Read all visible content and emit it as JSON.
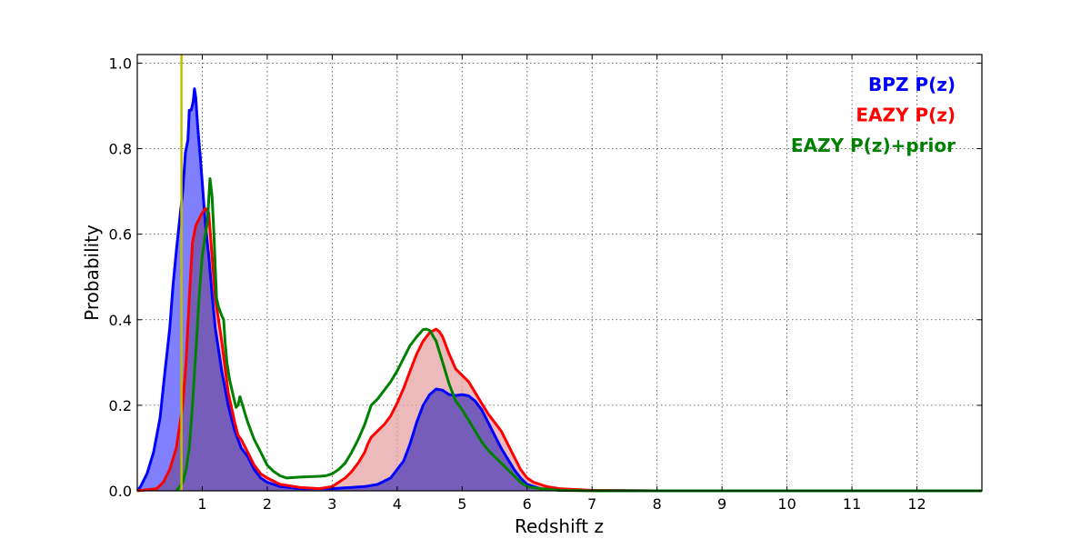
{
  "chart_data": {
    "type": "area",
    "title": "",
    "xlabel": "Redshift z",
    "ylabel": "Probability",
    "xlim": [
      0,
      13
    ],
    "ylim": [
      0,
      1.02
    ],
    "x_ticks": [
      1,
      2,
      3,
      4,
      5,
      6,
      7,
      8,
      9,
      10,
      11,
      12
    ],
    "x_tick_labels": [
      "1",
      "2",
      "3",
      "4",
      "5",
      "6",
      "7",
      "8",
      "9",
      "10",
      "11",
      "12"
    ],
    "y_ticks": [
      0,
      0.2,
      0.4,
      0.6,
      0.8,
      1.0
    ],
    "y_tick_labels": [
      "0.0",
      "0.2",
      "0.4",
      "0.6",
      "0.8",
      "1.0"
    ],
    "grid": true,
    "legend_placement": "top-right",
    "reference_line": {
      "x": 0.68,
      "color": "#bfbf00"
    },
    "series": [
      {
        "name": "BPZ P(z)",
        "color": "#0000ff",
        "fill": "#8080ff",
        "filled": true,
        "points": [
          [
            0,
            0
          ],
          [
            0.05,
            0.01
          ],
          [
            0.15,
            0.04
          ],
          [
            0.25,
            0.09
          ],
          [
            0.35,
            0.17
          ],
          [
            0.42,
            0.27
          ],
          [
            0.5,
            0.38
          ],
          [
            0.55,
            0.48
          ],
          [
            0.6,
            0.56
          ],
          [
            0.65,
            0.63
          ],
          [
            0.7,
            0.7
          ],
          [
            0.74,
            0.79
          ],
          [
            0.78,
            0.82
          ],
          [
            0.8,
            0.89
          ],
          [
            0.83,
            0.89
          ],
          [
            0.86,
            0.91
          ],
          [
            0.88,
            0.94
          ],
          [
            0.9,
            0.92
          ],
          [
            0.93,
            0.85
          ],
          [
            0.97,
            0.78
          ],
          [
            1.0,
            0.72
          ],
          [
            1.05,
            0.62
          ],
          [
            1.1,
            0.55
          ],
          [
            1.15,
            0.46
          ],
          [
            1.2,
            0.38
          ],
          [
            1.3,
            0.28
          ],
          [
            1.4,
            0.2
          ],
          [
            1.5,
            0.14
          ],
          [
            1.6,
            0.1
          ],
          [
            1.7,
            0.08
          ],
          [
            1.8,
            0.05
          ],
          [
            1.9,
            0.03
          ],
          [
            2.0,
            0.02
          ],
          [
            2.2,
            0.01
          ],
          [
            2.5,
            0.005
          ],
          [
            3.0,
            0.005
          ],
          [
            3.3,
            0.008
          ],
          [
            3.5,
            0.01
          ],
          [
            3.7,
            0.015
          ],
          [
            3.9,
            0.03
          ],
          [
            4.0,
            0.05
          ],
          [
            4.1,
            0.07
          ],
          [
            4.2,
            0.11
          ],
          [
            4.3,
            0.16
          ],
          [
            4.4,
            0.2
          ],
          [
            4.5,
            0.225
          ],
          [
            4.6,
            0.238
          ],
          [
            4.7,
            0.235
          ],
          [
            4.8,
            0.225
          ],
          [
            4.9,
            0.223
          ],
          [
            5.0,
            0.225
          ],
          [
            5.1,
            0.222
          ],
          [
            5.2,
            0.21
          ],
          [
            5.3,
            0.19
          ],
          [
            5.4,
            0.16
          ],
          [
            5.5,
            0.13
          ],
          [
            5.6,
            0.1
          ],
          [
            5.7,
            0.075
          ],
          [
            5.8,
            0.05
          ],
          [
            5.9,
            0.03
          ],
          [
            6.0,
            0.015
          ],
          [
            6.2,
            0.005
          ],
          [
            6.5,
            0.002
          ],
          [
            7.0,
            0.001
          ],
          [
            8,
            0
          ],
          [
            10,
            0
          ],
          [
            12,
            0
          ],
          [
            13,
            0
          ]
        ]
      },
      {
        "name": "EAZY P(z)",
        "color": "#ff0000",
        "fill": "#e5a3a3",
        "filled": true,
        "points": [
          [
            0,
            0
          ],
          [
            0.3,
            0.005
          ],
          [
            0.4,
            0.02
          ],
          [
            0.5,
            0.05
          ],
          [
            0.6,
            0.1
          ],
          [
            0.7,
            0.2
          ],
          [
            0.75,
            0.3
          ],
          [
            0.8,
            0.45
          ],
          [
            0.85,
            0.58
          ],
          [
            0.9,
            0.62
          ],
          [
            1.0,
            0.65
          ],
          [
            1.05,
            0.66
          ],
          [
            1.1,
            0.65
          ],
          [
            1.15,
            0.55
          ],
          [
            1.2,
            0.45
          ],
          [
            1.3,
            0.35
          ],
          [
            1.4,
            0.23
          ],
          [
            1.5,
            0.16
          ],
          [
            1.55,
            0.13
          ],
          [
            1.6,
            0.12
          ],
          [
            1.7,
            0.09
          ],
          [
            1.8,
            0.06
          ],
          [
            1.9,
            0.04
          ],
          [
            2.0,
            0.03
          ],
          [
            2.2,
            0.015
          ],
          [
            2.5,
            0.008
          ],
          [
            2.8,
            0.005
          ],
          [
            3.0,
            0.01
          ],
          [
            3.1,
            0.02
          ],
          [
            3.2,
            0.03
          ],
          [
            3.3,
            0.045
          ],
          [
            3.4,
            0.065
          ],
          [
            3.5,
            0.09
          ],
          [
            3.55,
            0.11
          ],
          [
            3.6,
            0.125
          ],
          [
            3.7,
            0.14
          ],
          [
            3.8,
            0.155
          ],
          [
            3.9,
            0.175
          ],
          [
            4.0,
            0.205
          ],
          [
            4.1,
            0.24
          ],
          [
            4.2,
            0.28
          ],
          [
            4.3,
            0.32
          ],
          [
            4.4,
            0.35
          ],
          [
            4.5,
            0.37
          ],
          [
            4.6,
            0.378
          ],
          [
            4.65,
            0.372
          ],
          [
            4.7,
            0.36
          ],
          [
            4.8,
            0.32
          ],
          [
            4.9,
            0.285
          ],
          [
            5.0,
            0.27
          ],
          [
            5.1,
            0.255
          ],
          [
            5.2,
            0.23
          ],
          [
            5.3,
            0.205
          ],
          [
            5.4,
            0.18
          ],
          [
            5.5,
            0.16
          ],
          [
            5.6,
            0.14
          ],
          [
            5.7,
            0.11
          ],
          [
            5.8,
            0.08
          ],
          [
            5.9,
            0.05
          ],
          [
            6.0,
            0.03
          ],
          [
            6.1,
            0.02
          ],
          [
            6.3,
            0.01
          ],
          [
            6.5,
            0.005
          ],
          [
            7.0,
            0.001
          ],
          [
            8,
            0
          ],
          [
            10,
            0
          ],
          [
            12,
            0
          ],
          [
            13,
            0
          ]
        ]
      },
      {
        "name": "EAZY P(z)+prior",
        "color": "#008000",
        "filled": false,
        "points": [
          [
            0.6,
            0
          ],
          [
            0.7,
            0.02
          ],
          [
            0.75,
            0.05
          ],
          [
            0.8,
            0.1
          ],
          [
            0.85,
            0.2
          ],
          [
            0.9,
            0.32
          ],
          [
            0.95,
            0.45
          ],
          [
            1.0,
            0.55
          ],
          [
            1.05,
            0.6
          ],
          [
            1.08,
            0.63
          ],
          [
            1.1,
            0.68
          ],
          [
            1.12,
            0.73
          ],
          [
            1.15,
            0.69
          ],
          [
            1.18,
            0.6
          ],
          [
            1.2,
            0.52
          ],
          [
            1.22,
            0.45
          ],
          [
            1.25,
            0.43
          ],
          [
            1.3,
            0.41
          ],
          [
            1.33,
            0.4
          ],
          [
            1.35,
            0.35
          ],
          [
            1.38,
            0.3
          ],
          [
            1.42,
            0.26
          ],
          [
            1.48,
            0.22
          ],
          [
            1.52,
            0.195
          ],
          [
            1.55,
            0.2
          ],
          [
            1.58,
            0.22
          ],
          [
            1.62,
            0.2
          ],
          [
            1.7,
            0.16
          ],
          [
            1.8,
            0.12
          ],
          [
            1.9,
            0.09
          ],
          [
            2.0,
            0.06
          ],
          [
            2.1,
            0.045
          ],
          [
            2.2,
            0.035
          ],
          [
            2.3,
            0.03
          ],
          [
            2.5,
            0.032
          ],
          [
            2.8,
            0.034
          ],
          [
            2.9,
            0.035
          ],
          [
            3.0,
            0.04
          ],
          [
            3.1,
            0.05
          ],
          [
            3.2,
            0.065
          ],
          [
            3.3,
            0.09
          ],
          [
            3.4,
            0.12
          ],
          [
            3.5,
            0.155
          ],
          [
            3.6,
            0.2
          ],
          [
            3.7,
            0.215
          ],
          [
            3.8,
            0.235
          ],
          [
            3.9,
            0.255
          ],
          [
            4.0,
            0.28
          ],
          [
            4.1,
            0.31
          ],
          [
            4.2,
            0.34
          ],
          [
            4.3,
            0.36
          ],
          [
            4.4,
            0.377
          ],
          [
            4.45,
            0.378
          ],
          [
            4.5,
            0.375
          ],
          [
            4.6,
            0.35
          ],
          [
            4.7,
            0.3
          ],
          [
            4.8,
            0.25
          ],
          [
            4.9,
            0.21
          ],
          [
            5.0,
            0.19
          ],
          [
            5.1,
            0.165
          ],
          [
            5.2,
            0.14
          ],
          [
            5.3,
            0.115
          ],
          [
            5.4,
            0.095
          ],
          [
            5.5,
            0.08
          ],
          [
            5.6,
            0.065
          ],
          [
            5.7,
            0.05
          ],
          [
            5.8,
            0.035
          ],
          [
            5.9,
            0.02
          ],
          [
            6.0,
            0.01
          ],
          [
            6.2,
            0.005
          ],
          [
            6.5,
            0.001
          ],
          [
            7.0,
            0
          ],
          [
            13,
            0
          ]
        ]
      }
    ]
  }
}
